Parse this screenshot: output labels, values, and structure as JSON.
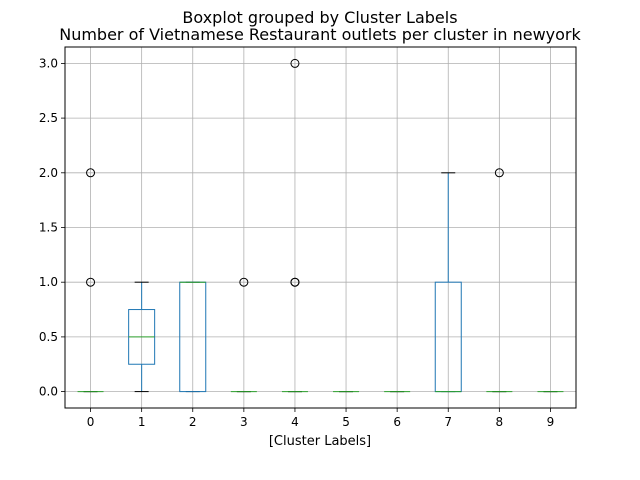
{
  "chart_data": {
    "type": "box",
    "suptitle": "Boxplot grouped by Cluster Labels",
    "title": "Number of Vietnamese Restaurant outlets per cluster in newyork",
    "xlabel": "[Cluster Labels]",
    "ylabel": "",
    "categories": [
      "0",
      "1",
      "2",
      "3",
      "4",
      "5",
      "6",
      "7",
      "8",
      "9"
    ],
    "yticks": [
      "0.0",
      "0.5",
      "1.0",
      "1.5",
      "2.0",
      "2.5",
      "3.0"
    ],
    "ylim": [
      -0.15,
      3.15
    ],
    "grid": true,
    "boxes": [
      {
        "q1": 0,
        "median": 0,
        "q3": 0,
        "whisker_low": 0,
        "whisker_high": 0,
        "outliers": [
          1,
          2
        ]
      },
      {
        "q1": 0.25,
        "median": 0.5,
        "q3": 0.75,
        "whisker_low": 0,
        "whisker_high": 1,
        "outliers": []
      },
      {
        "q1": 0,
        "median": 1,
        "q3": 1,
        "whisker_low": 0,
        "whisker_high": 1,
        "outliers": []
      },
      {
        "q1": 0,
        "median": 0,
        "q3": 0,
        "whisker_low": 0,
        "whisker_high": 0,
        "outliers": [
          1
        ]
      },
      {
        "q1": 0,
        "median": 0,
        "q3": 0,
        "whisker_low": 0,
        "whisker_high": 0,
        "outliers": [
          1,
          1,
          3
        ]
      },
      {
        "q1": 0,
        "median": 0,
        "q3": 0,
        "whisker_low": 0,
        "whisker_high": 0,
        "outliers": []
      },
      {
        "q1": 0,
        "median": 0,
        "q3": 0,
        "whisker_low": 0,
        "whisker_high": 0,
        "outliers": []
      },
      {
        "q1": 0,
        "median": 0,
        "q3": 1,
        "whisker_low": 0,
        "whisker_high": 2,
        "outliers": []
      },
      {
        "q1": 0,
        "median": 0,
        "q3": 0,
        "whisker_low": 0,
        "whisker_high": 0,
        "outliers": [
          2
        ]
      },
      {
        "q1": 0,
        "median": 0,
        "q3": 0,
        "whisker_low": 0,
        "whisker_high": 0,
        "outliers": []
      }
    ],
    "colors": {
      "box": "#1f77b4",
      "median": "#2ca02c",
      "whisker": "#1f77b4",
      "cap": "#000000",
      "grid": "#b0b0b0"
    }
  }
}
